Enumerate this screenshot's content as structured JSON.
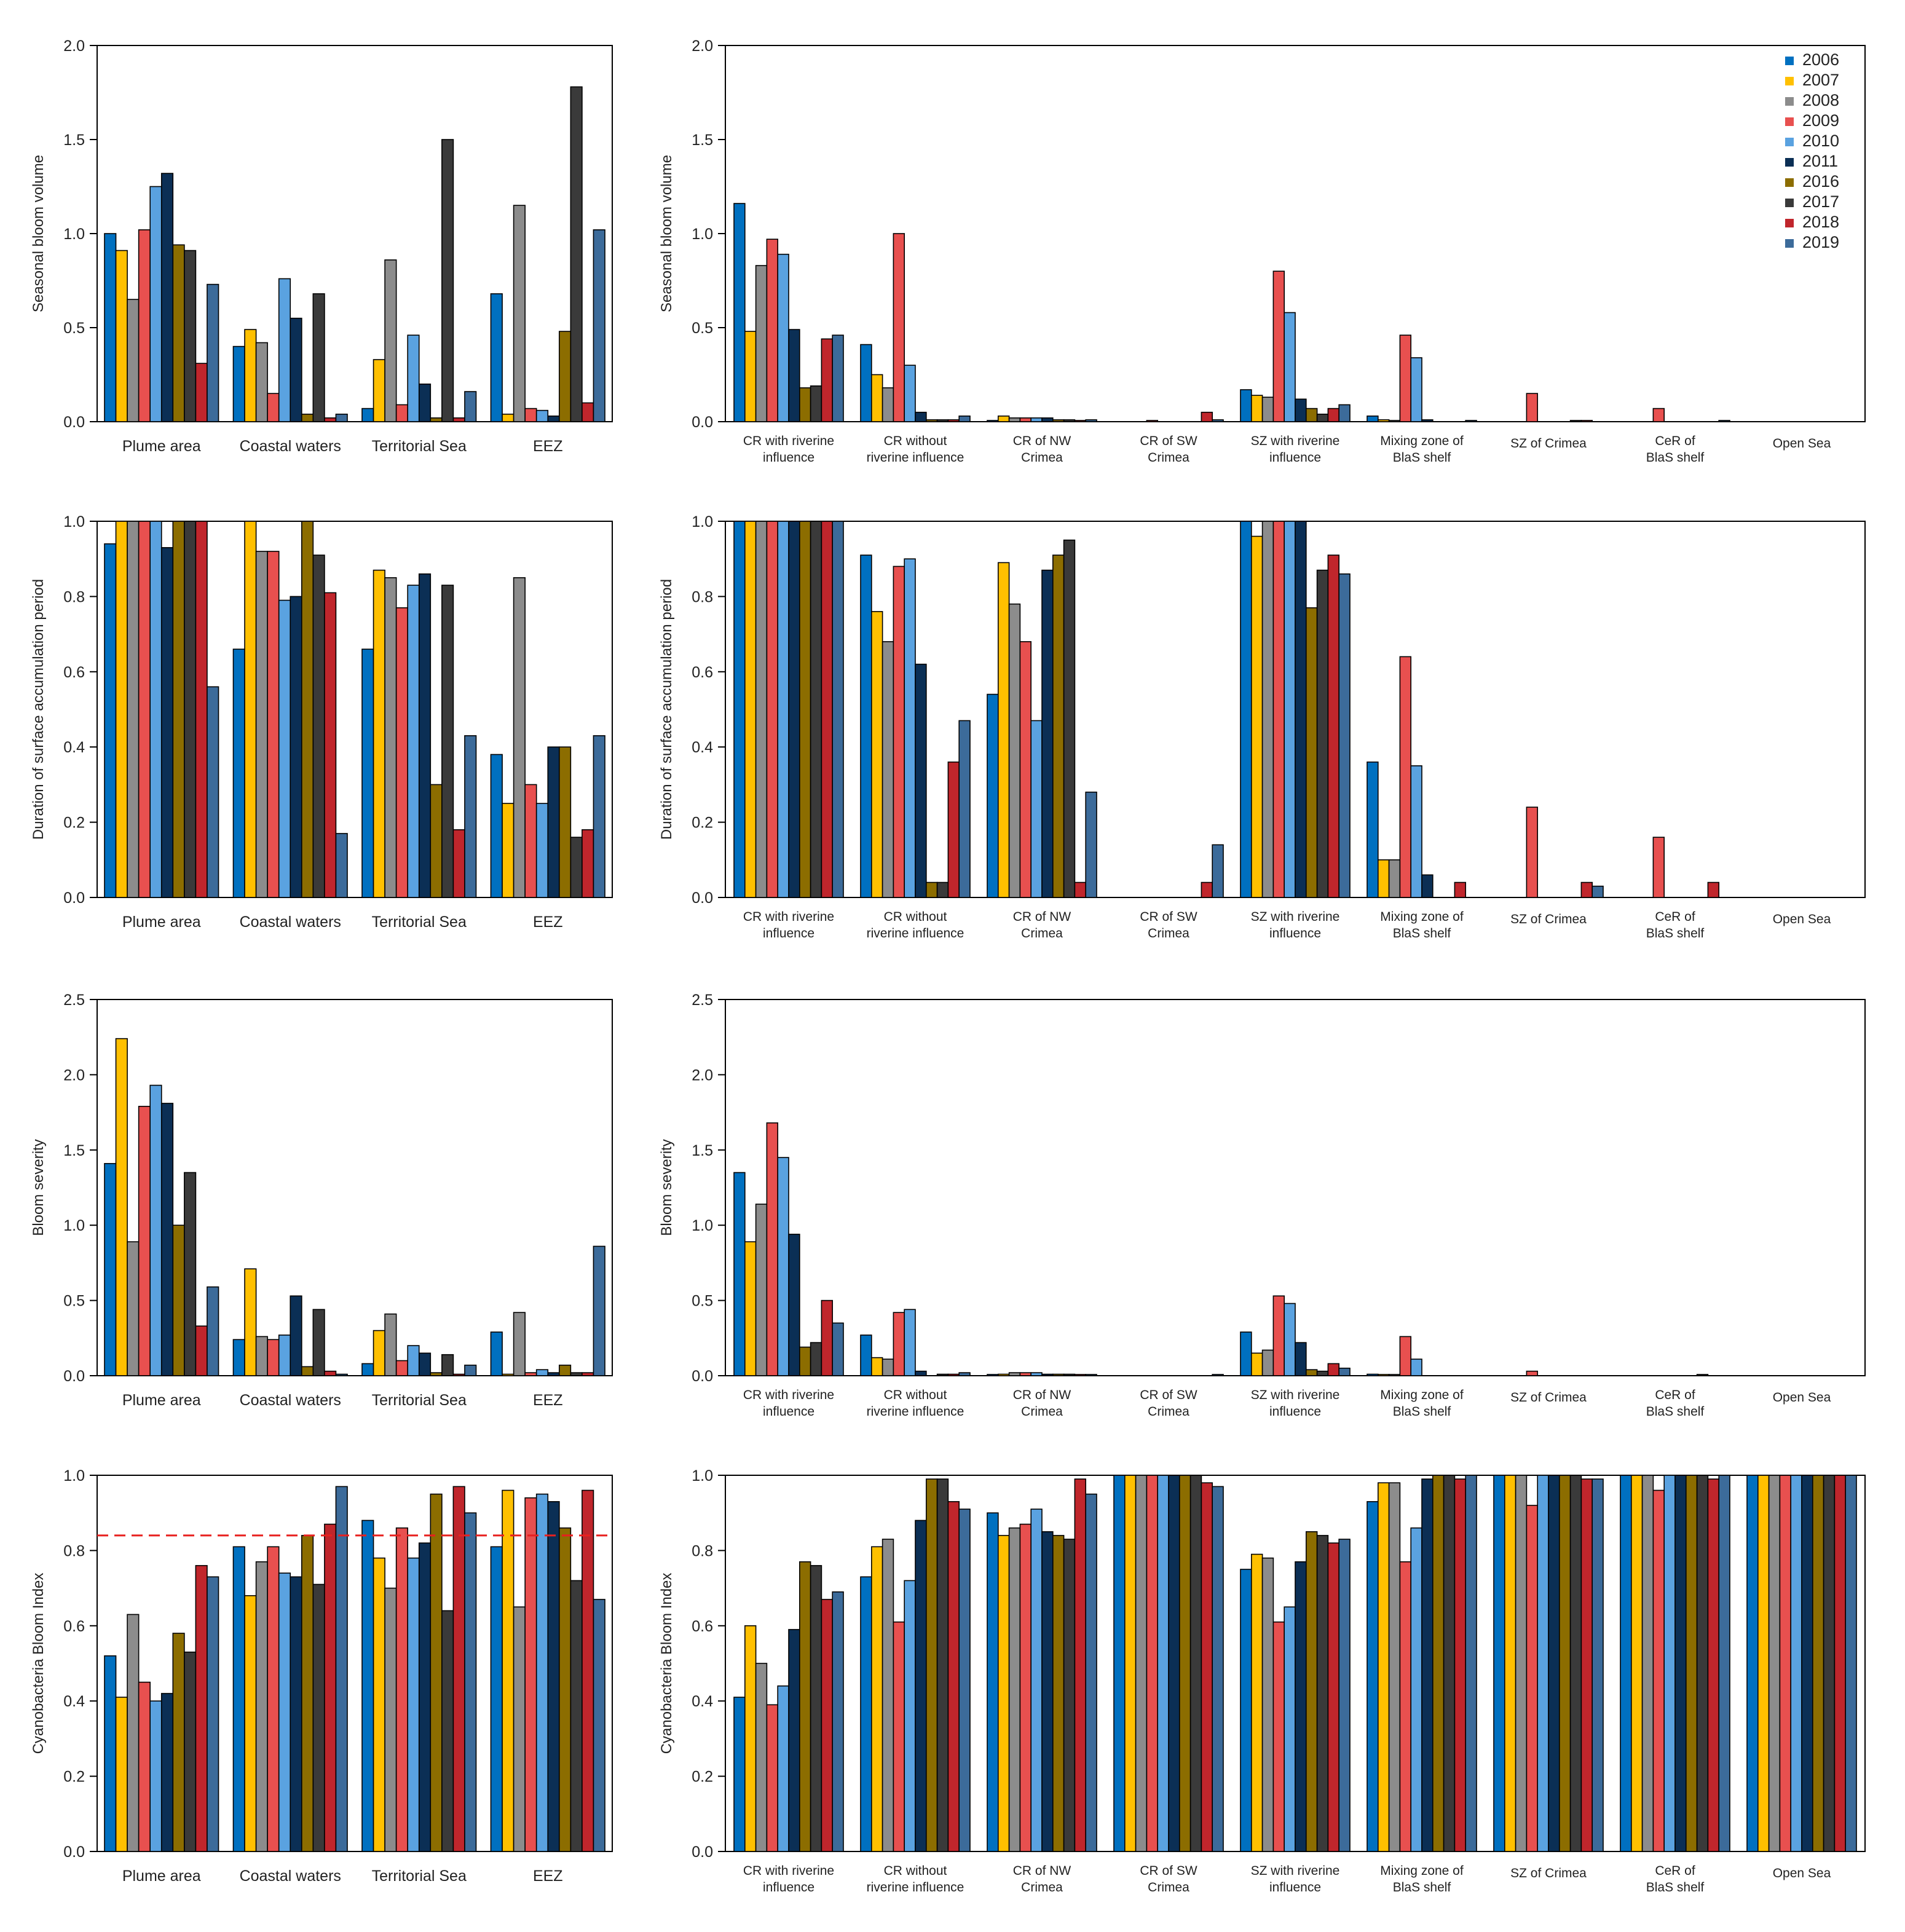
{
  "years": [
    "2006",
    "2007",
    "2008",
    "2009",
    "2010",
    "2011",
    "2016",
    "2017",
    "2018",
    "2019"
  ],
  "colors": [
    "#0070c0",
    "#ffc000",
    "#8c8c8c",
    "#e8504f",
    "#5aa2e0",
    "#0b2f55",
    "#8c6d00",
    "#3a3a3a",
    "#c0262c",
    "#3c6b9a"
  ],
  "left_categories": [
    "Plume area",
    "Coastal waters",
    "Territorial Sea",
    "EEZ"
  ],
  "right_categories": [
    [
      "CR with riverine",
      "influence"
    ],
    [
      "CR without",
      "riverine influence"
    ],
    [
      "CR of NW",
      "Crimea"
    ],
    [
      "CR of SW",
      "Crimea"
    ],
    [
      "SZ with riverine",
      "influence"
    ],
    [
      "Mixing zone of",
      "BlaS shelf"
    ],
    [
      "SZ of Crimea"
    ],
    [
      "CeR of",
      "BlaS shelf"
    ],
    [
      "Open Sea"
    ]
  ],
  "chart_data": [
    {
      "id": "row1-left",
      "type": "bar",
      "ylabel": "Seasonal bloom volume",
      "ylim": [
        0,
        2.0
      ],
      "yticks": [
        "0.0",
        "0.5",
        "1.0",
        "1.5",
        "2.0"
      ],
      "tick_values": [
        0,
        0.5,
        1.0,
        1.5,
        2.0
      ],
      "categories": [
        "Plume area",
        "Coastal waters",
        "Territorial Sea",
        "EEZ"
      ],
      "values": [
        [
          1.0,
          0.91,
          0.65,
          1.02,
          1.25,
          1.32,
          0.94,
          0.91,
          0.31,
          0.73
        ],
        [
          0.4,
          0.49,
          0.42,
          0.15,
          0.76,
          0.55,
          0.04,
          0.68,
          0.02,
          0.04
        ],
        [
          0.07,
          0.33,
          0.86,
          0.09,
          0.46,
          0.2,
          0.02,
          1.5,
          0.02,
          0.16
        ],
        [
          0.68,
          0.04,
          1.15,
          0.07,
          0.06,
          0.03,
          0.48,
          1.78,
          0.1,
          1.02
        ]
      ]
    },
    {
      "id": "row1-right",
      "type": "bar",
      "ylabel": "Seasonal bloom volume",
      "ylim": [
        0,
        2.0
      ],
      "yticks": [
        "0.0",
        "0.5",
        "1.0",
        "1.5",
        "2.0"
      ],
      "tick_values": [
        0,
        0.5,
        1.0,
        1.5,
        2.0
      ],
      "categories": [
        "CR with riverine influence",
        "CR without riverine influence",
        "CR of NW Crimea",
        "CR of SW Crimea",
        "SZ with riverine influence",
        "Mixing zone of BlaS shelf",
        "SZ of Crimea",
        "CeR of BlaS shelf",
        "Open Sea"
      ],
      "legend": "top-right",
      "values": [
        [
          1.16,
          0.48,
          0.83,
          0.97,
          0.89,
          0.49,
          0.18,
          0.19,
          0.44,
          0.46
        ],
        [
          0.41,
          0.25,
          0.18,
          1.0,
          0.3,
          0.05,
          0.01,
          0.01,
          0.01,
          0.03
        ],
        [
          0.005,
          0.03,
          0.02,
          0.02,
          0.02,
          0.02,
          0.01,
          0.01,
          0.005,
          0.01
        ],
        [
          0,
          0,
          0,
          0.002,
          0,
          0,
          0,
          0,
          0.05,
          0.01
        ],
        [
          0.17,
          0.14,
          0.13,
          0.8,
          0.58,
          0.12,
          0.07,
          0.04,
          0.07,
          0.09
        ],
        [
          0.03,
          0.01,
          0.005,
          0.46,
          0.34,
          0.01,
          0,
          0,
          0,
          0.002
        ],
        [
          0,
          0,
          0,
          0.15,
          0,
          0,
          0,
          0.005,
          0.005,
          0
        ],
        [
          0,
          0,
          0,
          0.07,
          0,
          0,
          0,
          0,
          0,
          0.002
        ],
        [
          0,
          0,
          0,
          0,
          0,
          0,
          0,
          0,
          0,
          0
        ]
      ]
    },
    {
      "id": "row2-left",
      "type": "bar",
      "ylabel": "Duration of surface accumulation period",
      "ylim": [
        0,
        1.0
      ],
      "yticks": [
        "0.0",
        "0.2",
        "0.4",
        "0.6",
        "0.8",
        "1.0"
      ],
      "tick_values": [
        0,
        0.2,
        0.4,
        0.6,
        0.8,
        1.0
      ],
      "categories": [
        "Plume area",
        "Coastal waters",
        "Territorial Sea",
        "EEZ"
      ],
      "values": [
        [
          0.94,
          1.0,
          1.0,
          1.0,
          1.0,
          0.93,
          1.0,
          1.0,
          1.0,
          0.56
        ],
        [
          0.66,
          1.0,
          0.92,
          0.92,
          0.79,
          0.8,
          1.0,
          0.91,
          0.81,
          0.17
        ],
        [
          0.66,
          0.87,
          0.85,
          0.77,
          0.83,
          0.86,
          0.3,
          0.83,
          0.18,
          0.43
        ],
        [
          0.38,
          0.25,
          0.85,
          0.3,
          0.25,
          0.4,
          0.4,
          0.16,
          0.18,
          0.43
        ]
      ]
    },
    {
      "id": "row2-right",
      "type": "bar",
      "ylabel": "Duration of surface accumulation period",
      "ylim": [
        0,
        1.0
      ],
      "yticks": [
        "0.0",
        "0.2",
        "0.4",
        "0.6",
        "0.8",
        "1.0"
      ],
      "tick_values": [
        0,
        0.2,
        0.4,
        0.6,
        0.8,
        1.0
      ],
      "categories": [
        "CR with riverine influence",
        "CR without riverine influence",
        "CR of NW Crimea",
        "CR of SW Crimea",
        "SZ with riverine influence",
        "Mixing zone of BlaS shelf",
        "SZ of Crimea",
        "CeR of BlaS shelf",
        "Open Sea"
      ],
      "values": [
        [
          1.0,
          1.0,
          1.0,
          1.0,
          1.0,
          1.0,
          1.0,
          1.0,
          1.0,
          1.0
        ],
        [
          0.91,
          0.76,
          0.68,
          0.88,
          0.9,
          0.62,
          0.04,
          0.04,
          0.36,
          0.47
        ],
        [
          0.54,
          0.89,
          0.78,
          0.68,
          0.47,
          0.87,
          0.91,
          0.95,
          0.04,
          0.28
        ],
        [
          0,
          0,
          0,
          0,
          0,
          0,
          0,
          0,
          0.04,
          0.14
        ],
        [
          1.0,
          0.96,
          1.0,
          1.0,
          1.0,
          1.0,
          0.77,
          0.87,
          0.91,
          0.86
        ],
        [
          0.36,
          0.1,
          0.1,
          0.64,
          0.35,
          0.06,
          0,
          0,
          0.04,
          0
        ],
        [
          0,
          0,
          0,
          0.24,
          0,
          0,
          0,
          0,
          0.04,
          0.03
        ],
        [
          0,
          0,
          0,
          0.16,
          0,
          0,
          0,
          0,
          0.04,
          0
        ],
        [
          0,
          0,
          0,
          0,
          0,
          0,
          0,
          0,
          0,
          0
        ]
      ]
    },
    {
      "id": "row3-left",
      "type": "bar",
      "ylabel": "Bloom severity",
      "ylim": [
        0,
        2.5
      ],
      "yticks": [
        "0.0",
        "0.5",
        "1.0",
        "1.5",
        "2.0",
        "2.5"
      ],
      "tick_values": [
        0,
        0.5,
        1.0,
        1.5,
        2.0,
        2.5
      ],
      "categories": [
        "Plume area",
        "Coastal waters",
        "Territorial Sea",
        "EEZ"
      ],
      "values": [
        [
          1.41,
          2.24,
          0.89,
          1.79,
          1.93,
          1.81,
          1.0,
          1.35,
          0.33,
          0.59
        ],
        [
          0.24,
          0.71,
          0.26,
          0.24,
          0.27,
          0.53,
          0.06,
          0.44,
          0.03,
          0.01
        ],
        [
          0.08,
          0.3,
          0.41,
          0.1,
          0.2,
          0.15,
          0.02,
          0.14,
          0.01,
          0.07
        ],
        [
          0.29,
          0.01,
          0.42,
          0.02,
          0.04,
          0.02,
          0.07,
          0.02,
          0.02,
          0.86
        ]
      ]
    },
    {
      "id": "row3-right",
      "type": "bar",
      "ylabel": "Bloom severity",
      "ylim": [
        0,
        2.5
      ],
      "yticks": [
        "0.0",
        "0.5",
        "1.0",
        "1.5",
        "2.0",
        "2.5"
      ],
      "tick_values": [
        0,
        0.5,
        1.0,
        1.5,
        2.0,
        2.5
      ],
      "categories": [
        "CR with riverine influence",
        "CR without riverine influence",
        "CR of NW Crimea",
        "CR of SW Crimea",
        "SZ with riverine influence",
        "Mixing zone of BlaS shelf",
        "SZ of Crimea",
        "CeR of BlaS shelf",
        "Open Sea"
      ],
      "values": [
        [
          1.35,
          0.89,
          1.14,
          1.68,
          1.45,
          0.94,
          0.19,
          0.22,
          0.5,
          0.35
        ],
        [
          0.27,
          0.12,
          0.11,
          0.42,
          0.44,
          0.03,
          0,
          0.01,
          0.01,
          0.02
        ],
        [
          0.005,
          0.01,
          0.02,
          0.02,
          0.02,
          0.01,
          0.01,
          0.01,
          0.005,
          0.005
        ],
        [
          0,
          0,
          0,
          0,
          0,
          0,
          0,
          0,
          0,
          0.005
        ],
        [
          0.29,
          0.15,
          0.17,
          0.53,
          0.48,
          0.22,
          0.04,
          0.03,
          0.08,
          0.05
        ],
        [
          0.01,
          0.005,
          0.002,
          0.26,
          0.11,
          0,
          0,
          0,
          0,
          0
        ],
        [
          0,
          0,
          0,
          0.03,
          0,
          0,
          0,
          0,
          0,
          0
        ],
        [
          0,
          0,
          0,
          0,
          0,
          0,
          0,
          0.005,
          0,
          0
        ],
        [
          0,
          0,
          0,
          0,
          0,
          0,
          0,
          0,
          0,
          0
        ]
      ]
    },
    {
      "id": "row4-left",
      "type": "bar",
      "ylabel": "Cyanobacteria Bloom Index",
      "ylim": [
        0,
        1.0
      ],
      "yticks": [
        "0.0",
        "0.2",
        "0.4",
        "0.6",
        "0.8",
        "1.0"
      ],
      "tick_values": [
        0,
        0.2,
        0.4,
        0.6,
        0.8,
        1.0
      ],
      "categories": [
        "Plume area",
        "Coastal waters",
        "Territorial Sea",
        "EEZ"
      ],
      "threshold": 0.84,
      "values": [
        [
          0.52,
          0.41,
          0.63,
          0.45,
          0.4,
          0.42,
          0.58,
          0.53,
          0.76,
          0.73
        ],
        [
          0.81,
          0.68,
          0.77,
          0.81,
          0.74,
          0.73,
          0.84,
          0.71,
          0.87,
          0.97
        ],
        [
          0.88,
          0.78,
          0.7,
          0.86,
          0.78,
          0.82,
          0.95,
          0.64,
          0.97,
          0.9
        ],
        [
          0.81,
          0.96,
          0.65,
          0.94,
          0.95,
          0.93,
          0.86,
          0.72,
          0.96,
          0.67
        ]
      ]
    },
    {
      "id": "row4-right",
      "type": "bar",
      "ylabel": "Cyanobacteria Bloom Index",
      "ylim": [
        0,
        1.0
      ],
      "yticks": [
        "0.0",
        "0.2",
        "0.4",
        "0.6",
        "0.8",
        "1.0"
      ],
      "tick_values": [
        0,
        0.2,
        0.4,
        0.6,
        0.8,
        1.0
      ],
      "categories": [
        "CR with riverine influence",
        "CR without riverine influence",
        "CR of NW Crimea",
        "CR of SW Crimea",
        "SZ with riverine influence",
        "Mixing zone of BlaS shelf",
        "SZ of Crimea",
        "CeR of BlaS shelf",
        "Open Sea"
      ],
      "values": [
        [
          0.41,
          0.6,
          0.5,
          0.39,
          0.44,
          0.59,
          0.77,
          0.76,
          0.67,
          0.69
        ],
        [
          0.73,
          0.81,
          0.83,
          0.61,
          0.72,
          0.88,
          0.99,
          0.99,
          0.93,
          0.91
        ],
        [
          0.9,
          0.84,
          0.86,
          0.87,
          0.91,
          0.85,
          0.84,
          0.83,
          0.99,
          0.95
        ],
        [
          1.0,
          1.0,
          1.0,
          1.0,
          1.0,
          1.0,
          1.0,
          1.0,
          0.98,
          0.97
        ],
        [
          0.75,
          0.79,
          0.78,
          0.61,
          0.65,
          0.77,
          0.85,
          0.84,
          0.82,
          0.83
        ],
        [
          0.93,
          0.98,
          0.98,
          0.77,
          0.86,
          0.99,
          1.0,
          1.0,
          0.99,
          1.0
        ],
        [
          1.0,
          1.0,
          1.0,
          0.92,
          1.0,
          1.0,
          1.0,
          1.0,
          0.99,
          0.99
        ],
        [
          1.0,
          1.0,
          1.0,
          0.96,
          1.0,
          1.0,
          1.0,
          1.0,
          0.99,
          1.0
        ],
        [
          1.0,
          1.0,
          1.0,
          1.0,
          1.0,
          1.0,
          1.0,
          1.0,
          1.0,
          1.0
        ]
      ]
    }
  ]
}
